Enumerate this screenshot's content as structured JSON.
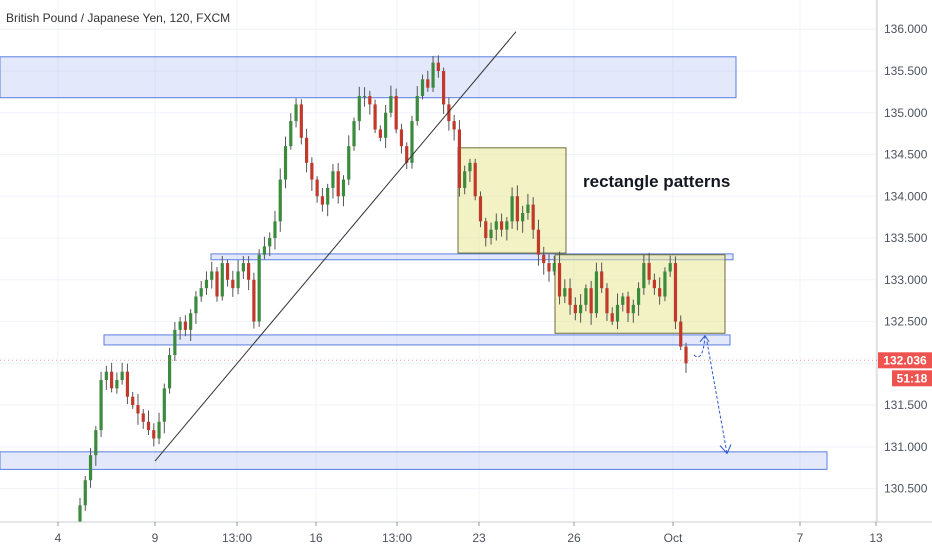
{
  "header": {
    "title": "British Pound / Japanese Yen, 120, FXCM"
  },
  "chart_data": {
    "type": "candlestick",
    "title": "British Pound / Japanese Yen, 120, FXCM",
    "symbol": "GBPJPY",
    "timeframe": "120",
    "source": "FXCM",
    "ylim": [
      130.1,
      136.35
    ],
    "y_ticks": [
      "136.000",
      "135.500",
      "135.000",
      "134.500",
      "134.000",
      "133.500",
      "133.000",
      "132.500",
      "132.000",
      "131.500",
      "131.000",
      "130.500"
    ],
    "x_ticks": [
      "4",
      "9",
      "13:00",
      "16",
      "13:00",
      "23",
      "26",
      "Oct",
      "7",
      "13"
    ],
    "current_price": {
      "value": 132.036,
      "label": "132.036",
      "countdown": "51:18"
    },
    "annotations": {
      "text": "rectangle patterns",
      "zones": [
        {
          "name": "resistance-top",
          "low": 135.18,
          "high": 135.67
        },
        {
          "name": "support-mid",
          "low": 133.24,
          "high": 133.31
        },
        {
          "name": "support-low",
          "low": 132.22,
          "high": 132.34
        },
        {
          "name": "target-zone",
          "low": 130.73,
          "high": 130.94
        }
      ],
      "rectangles": [
        {
          "name": "rectangle-pattern-1",
          "low": 133.32,
          "high": 134.58
        },
        {
          "name": "rectangle-pattern-2",
          "low": 132.36,
          "high": 133.3
        }
      ],
      "trendline": {
        "from": 130.83,
        "to": 135.97
      }
    },
    "close_path": [
      130.3,
      130.6,
      130.9,
      131.2,
      131.8,
      131.9,
      131.7,
      131.8,
      131.9,
      131.6,
      131.5,
      131.4,
      131.3,
      131.2,
      131.1,
      131.3,
      131.7,
      132.1,
      132.4,
      132.5,
      132.4,
      132.6,
      132.8,
      132.9,
      133.0,
      133.1,
      132.8,
      133.2,
      133.0,
      132.9,
      133.1,
      133.2,
      133.0,
      132.5,
      133.3,
      133.4,
      133.5,
      133.7,
      134.2,
      134.6,
      134.9,
      135.1,
      134.7,
      134.4,
      134.2,
      134.0,
      133.9,
      134.1,
      134.3,
      134.0,
      134.2,
      134.6,
      134.9,
      135.2,
      135.2,
      135.1,
      134.8,
      134.7,
      135.0,
      135.2,
      134.8,
      134.6,
      134.4,
      134.9,
      135.2,
      135.4,
      135.3,
      135.6,
      135.5,
      135.1,
      134.9,
      134.8,
      134.1,
      134.3,
      134.4,
      134.0,
      133.7,
      133.5,
      133.6,
      133.7,
      133.6,
      133.7,
      134.0,
      133.7,
      133.8,
      133.9,
      133.6,
      133.3,
      133.2,
      133.1,
      133.2,
      132.8,
      132.9,
      132.7,
      132.6,
      132.7,
      132.9,
      132.6,
      133.1,
      132.9,
      132.6,
      132.5,
      132.7,
      132.8,
      132.6,
      132.7,
      132.9,
      133.2,
      133.0,
      132.9,
      132.8,
      133.1,
      133.2,
      132.5,
      132.2,
      132.0
    ]
  }
}
